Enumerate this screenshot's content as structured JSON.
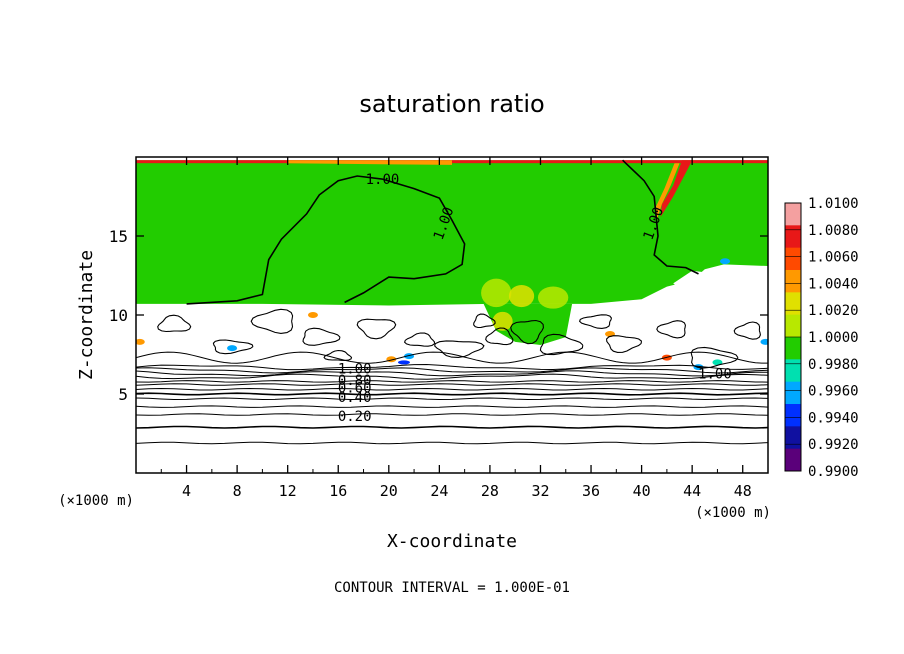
{
  "chart_data": {
    "type": "heatmap",
    "title": "saturation ratio",
    "xlabel": "X-coordinate",
    "ylabel": "Z-coordinate",
    "x_unit": "(×1000 m)",
    "y_unit": "(×1000 m)",
    "xlim": [
      0,
      50
    ],
    "ylim": [
      0,
      20
    ],
    "x_ticks": [
      4,
      8,
      12,
      16,
      20,
      24,
      28,
      32,
      36,
      40,
      44,
      48
    ],
    "y_ticks": [
      5,
      10,
      15
    ],
    "footer": "CONTOUR INTERVAL = 1.000E-01",
    "colorbar": {
      "levels": [
        "1.0100",
        "1.0080",
        "1.0060",
        "1.0040",
        "1.0020",
        "1.0000",
        "0.9980",
        "0.9960",
        "0.9940",
        "0.9920",
        "0.9900"
      ],
      "colors": [
        "#f4a0a0",
        "#e81818",
        "#ff4a00",
        "#ff9900",
        "#e0e000",
        "#b8e800",
        "#22cc00",
        "#00e0b0",
        "#00a8ff",
        "#0030ff",
        "#1010a0",
        "#5a007a"
      ]
    },
    "contour_labels": [
      {
        "text": "1.00",
        "x": 19.5,
        "z": 18.6
      },
      {
        "text": "1.00",
        "x": 24.3,
        "z": 15.8
      },
      {
        "text": "1.00",
        "x": 40.9,
        "z": 15.8
      },
      {
        "text": "1.00",
        "x": 45.8,
        "z": 6.3
      },
      {
        "text": "1.00",
        "x": 17.3,
        "z": 6.6
      },
      {
        "text": "0.80",
        "x": 17.3,
        "z": 5.9
      },
      {
        "text": "0.60",
        "x": 17.3,
        "z": 5.4
      },
      {
        "text": "0.40",
        "x": 17.3,
        "z": 4.8
      },
      {
        "text": "0.20",
        "x": 17.3,
        "z": 3.6
      }
    ],
    "grid": false
  }
}
